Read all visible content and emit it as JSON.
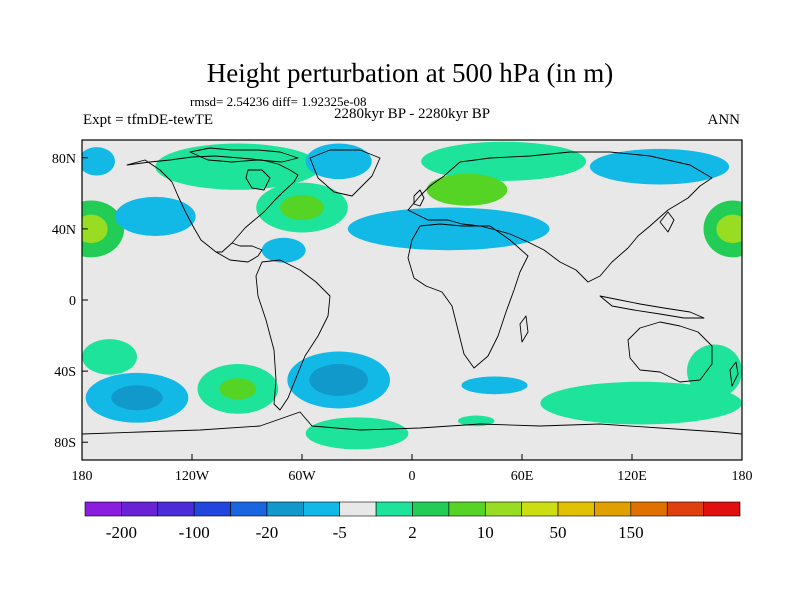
{
  "title": "Height perturbation at 500 hPa (in m)",
  "stats_line": "rmsd= 2.54236 diff= 1.92325e-08",
  "left_label": "Expt = tfmDE-tewTE",
  "center_label": "2280kyr BP - 2280kyr BP",
  "right_label": "ANN",
  "colors": {
    "background": "#e8e8e8",
    "coast": "#000000"
  },
  "map": {
    "lon_range": [
      -180,
      180
    ],
    "lat_range": [
      -90,
      90
    ],
    "x_ticks": [
      {
        "value": -180,
        "label": "180"
      },
      {
        "value": -120,
        "label": "120W"
      },
      {
        "value": -60,
        "label": "60W"
      },
      {
        "value": 0,
        "label": "0"
      },
      {
        "value": 60,
        "label": "60E"
      },
      {
        "value": 120,
        "label": "120E"
      },
      {
        "value": 180,
        "label": "180"
      }
    ],
    "y_ticks": [
      {
        "value": 80,
        "label": "80N"
      },
      {
        "value": 40,
        "label": "40N"
      },
      {
        "value": 0,
        "label": "0"
      },
      {
        "value": -40,
        "label": "40S"
      },
      {
        "value": -80,
        "label": "80S"
      }
    ],
    "patches": [
      {
        "lon": -175,
        "lat": 40,
        "rx": 18,
        "ry": 16,
        "level": "5-10",
        "color": "#22cc55",
        "inner": {
          "rx": 9,
          "ry": 8,
          "level": "10-20",
          "color": "#99dd22"
        }
      },
      {
        "lon": 175,
        "lat": 40,
        "rx": 16,
        "ry": 16,
        "level": "5-10",
        "color": "#22cc55",
        "inner": {
          "rx": 9,
          "ry": 8,
          "level": "10-20",
          "color": "#99dd22"
        }
      },
      {
        "lon": -140,
        "lat": 47,
        "rx": 22,
        "ry": 11,
        "level": "-5 to -2",
        "color": "#13b9e6"
      },
      {
        "lon": -172,
        "lat": 78,
        "rx": 10,
        "ry": 8,
        "level": "-5 to -2",
        "color": "#13b9e6"
      },
      {
        "lon": -95,
        "lat": 75,
        "rx": 45,
        "ry": 13,
        "level": "2-5",
        "color": "#1ee39a"
      },
      {
        "lon": -60,
        "lat": 52,
        "rx": 25,
        "ry": 14,
        "level": "2-5",
        "color": "#1ee39a",
        "inner": {
          "rx": 12,
          "ry": 7,
          "level": "5-10",
          "color": "#55d425"
        }
      },
      {
        "lon": -40,
        "lat": 78,
        "rx": 18,
        "ry": 10,
        "level": "-5 to -2",
        "color": "#13b9e6"
      },
      {
        "lon": -70,
        "lat": 28,
        "rx": 12,
        "ry": 7,
        "level": "-5 to -2",
        "color": "#13b9e6"
      },
      {
        "lon": 20,
        "lat": 40,
        "rx": 55,
        "ry": 12,
        "level": "-5 to -2",
        "color": "#13b9e6"
      },
      {
        "lon": 50,
        "lat": 78,
        "rx": 45,
        "ry": 11,
        "level": "2-5",
        "color": "#1ee39a"
      },
      {
        "lon": 30,
        "lat": 62,
        "rx": 22,
        "ry": 9,
        "level": "5-10",
        "color": "#55d425"
      },
      {
        "lon": 135,
        "lat": 75,
        "rx": 38,
        "ry": 10,
        "level": "-5 to -2",
        "color": "#13b9e6"
      },
      {
        "lon": -165,
        "lat": -32,
        "rx": 15,
        "ry": 10,
        "level": "2-5",
        "color": "#1ee39a"
      },
      {
        "lon": -150,
        "lat": -55,
        "rx": 28,
        "ry": 14,
        "level": "-5 to -2",
        "color": "#13b9e6",
        "inner": {
          "rx": 14,
          "ry": 7,
          "level": "-20 to -5",
          "color": "#1199cc"
        }
      },
      {
        "lon": -95,
        "lat": -50,
        "rx": 22,
        "ry": 14,
        "level": "2-5",
        "color": "#1ee39a",
        "inner": {
          "rx": 10,
          "ry": 6,
          "level": "5-10",
          "color": "#55d425"
        }
      },
      {
        "lon": -40,
        "lat": -45,
        "rx": 28,
        "ry": 16,
        "level": "-5 to -2",
        "color": "#13b9e6",
        "inner": {
          "rx": 16,
          "ry": 9,
          "level": "-20 to -5",
          "color": "#1199cc"
        }
      },
      {
        "lon": -30,
        "lat": -75,
        "rx": 28,
        "ry": 9,
        "level": "2-5",
        "color": "#1ee39a"
      },
      {
        "lon": 45,
        "lat": -48,
        "rx": 18,
        "ry": 5,
        "level": "-5 to -2",
        "color": "#13b9e6"
      },
      {
        "lon": 35,
        "lat": -68,
        "rx": 10,
        "ry": 3,
        "level": "2-5",
        "color": "#1ee39a"
      },
      {
        "lon": 125,
        "lat": -58,
        "rx": 55,
        "ry": 12,
        "level": "2-5",
        "color": "#1ee39a"
      },
      {
        "lon": 165,
        "lat": -40,
        "rx": 15,
        "ry": 15,
        "level": "2-5",
        "color": "#1ee39a"
      }
    ]
  },
  "colorbar": {
    "colors": [
      "#8b1de0",
      "#6a22d6",
      "#4a2dd8",
      "#2246dd",
      "#1a66e0",
      "#1199cc",
      "#13b9e6",
      "#e8e8e8",
      "#1ee39a",
      "#22cc55",
      "#55d425",
      "#99dd22",
      "#ccdd11",
      "#e0c000",
      "#e0a000",
      "#e07000",
      "#e04010",
      "#e01010"
    ],
    "labels": [
      {
        "boundary": 1,
        "text": "-200"
      },
      {
        "boundary": 3,
        "text": "-100"
      },
      {
        "boundary": 5,
        "text": "-20"
      },
      {
        "boundary": 7,
        "text": "-5"
      },
      {
        "boundary": 9,
        "text": "2"
      },
      {
        "boundary": 11,
        "text": "10"
      },
      {
        "boundary": 13,
        "text": "50"
      },
      {
        "boundary": 15,
        "text": "150"
      }
    ]
  }
}
